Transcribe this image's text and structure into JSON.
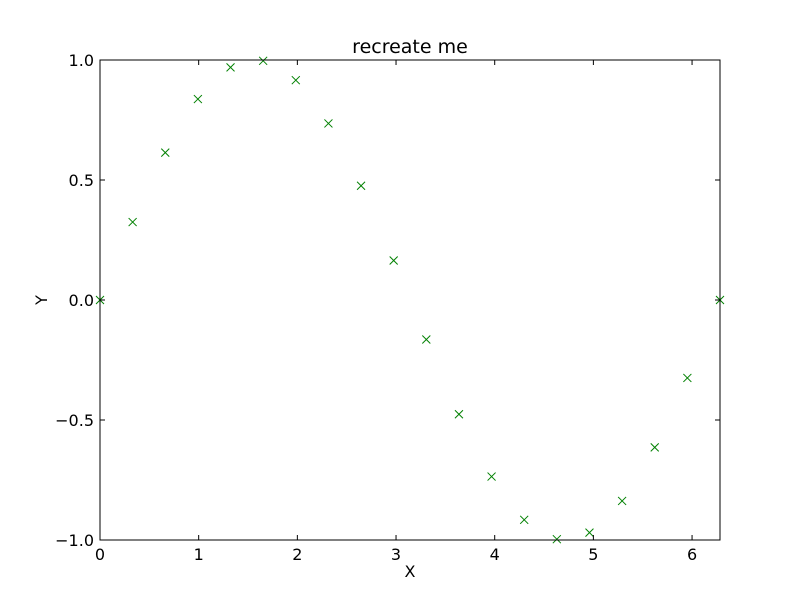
{
  "chart_data": {
    "type": "scatter",
    "title": "recreate me",
    "xlabel": "X",
    "ylabel": "Y",
    "xlim": [
      0,
      6.283185307
    ],
    "ylim": [
      -1.0,
      1.0
    ],
    "grid": false,
    "marker": "x",
    "color": "#008000",
    "x_ticks": [
      0,
      1,
      2,
      3,
      4,
      5,
      6
    ],
    "x_tick_labels": [
      "0",
      "1",
      "2",
      "3",
      "4",
      "5",
      "6"
    ],
    "y_ticks": [
      -1.0,
      -0.5,
      0.0,
      0.5,
      1.0
    ],
    "y_tick_labels": [
      "−1.0",
      "−0.5",
      "0.0",
      "0.5",
      "1.0"
    ],
    "series": [
      {
        "x": [
          0.0,
          0.3307,
          0.6614,
          0.9921,
          1.3228,
          1.6535,
          1.9842,
          2.3149,
          2.6456,
          2.9762,
          3.3069,
          3.6376,
          3.9683,
          4.299,
          4.6297,
          4.9604,
          5.2911,
          5.6218,
          5.9525,
          6.2832
        ],
        "y": [
          0.0,
          0.3247,
          0.6142,
          0.8372,
          0.9694,
          0.9966,
          0.9158,
          0.7357,
          0.4759,
          0.1646,
          -0.1646,
          -0.4759,
          -0.7357,
          -0.9158,
          -0.9966,
          -0.9694,
          -0.8372,
          -0.6142,
          -0.3247,
          0.0
        ]
      }
    ]
  }
}
